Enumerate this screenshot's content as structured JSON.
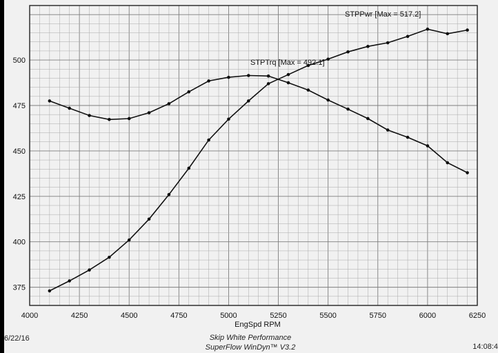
{
  "chart_data": {
    "type": "line",
    "xlabel": "EngSpd RPM",
    "ylabel": "",
    "xlim": [
      4000,
      6250
    ],
    "ylim": [
      365,
      530
    ],
    "xticks": [
      4000,
      4250,
      4500,
      4750,
      5000,
      5250,
      5500,
      5750,
      6000,
      6250
    ],
    "yticks": [
      375,
      400,
      425,
      450,
      475,
      500
    ],
    "grid": true,
    "x": [
      4100,
      4200,
      4300,
      4400,
      4500,
      4600,
      4700,
      4800,
      4900,
      5000,
      5100,
      5200,
      5300,
      5400,
      5500,
      5600,
      5700,
      5800,
      5900,
      6000,
      6100,
      6200
    ],
    "series": [
      {
        "name": "STPTrq",
        "values": [
          477.5,
          473.5,
          469.5,
          467.3,
          467.8,
          471.0,
          476.0,
          482.5,
          488.5,
          490.5,
          491.5,
          491.2,
          487.5,
          483.5,
          478.0,
          473.0,
          467.8,
          461.5,
          457.5,
          452.8,
          443.5,
          438.0
        ]
      },
      {
        "name": "STPPwr",
        "values": [
          373.0,
          378.5,
          384.5,
          391.5,
          401.0,
          412.5,
          426.0,
          440.5,
          456.0,
          467.5,
          477.5,
          487.0,
          492.0,
          497.0,
          500.5,
          504.5,
          507.5,
          509.5,
          513.0,
          517.0,
          514.5,
          516.5
        ]
      }
    ],
    "annotations": [
      {
        "text": "STPPwr [Max = 517.2]",
        "series": "STPPwr"
      },
      {
        "text": "STPTrq [Max = 492.1]",
        "series": "STPTrq"
      }
    ],
    "footer": {
      "left": "6/22/16",
      "line1": "Skip White Performance",
      "line2": "SuperFlow WinDyn™ V3.2",
      "right": "14:08:4"
    }
  }
}
